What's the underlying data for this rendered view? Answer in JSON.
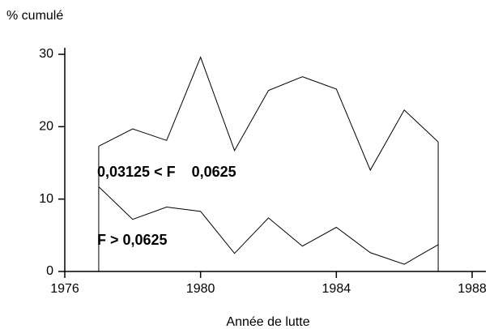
{
  "chart_data": {
    "type": "line",
    "y_label": "% cumulé",
    "x_label": "Année de lutte",
    "x": [
      1977,
      1978,
      1979,
      1980,
      1981,
      1982,
      1983,
      1984,
      1985,
      1986,
      1987
    ],
    "series": [
      {
        "color": "#000000",
        "values": [
          17.3,
          19.7,
          18.1,
          29.6,
          16.7,
          25.0,
          26.9,
          25.2,
          14.0,
          22.3,
          17.9
        ]
      },
      {
        "color": "#000000",
        "values": [
          11.7,
          7.2,
          8.9,
          8.3,
          2.5,
          7.4,
          3.5,
          6.1,
          2.6,
          1.0,
          3.7
        ]
      }
    ],
    "annotations": [
      "0,03125 < F    0,0625",
      "F > 0,0625"
    ],
    "xlim": [
      1976,
      1988
    ],
    "xticks": [
      1976,
      1980,
      1984,
      1988
    ],
    "ylim": [
      0,
      30
    ],
    "yticks": [
      0,
      10,
      20,
      30
    ]
  }
}
